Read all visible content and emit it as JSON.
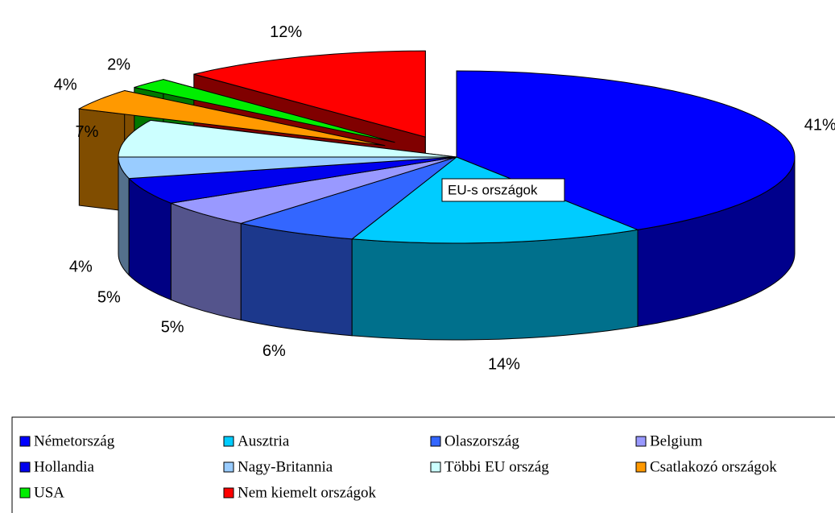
{
  "chart_data": {
    "type": "pie",
    "three_d": true,
    "categories": [
      "Németország",
      "Ausztria",
      "Olaszország",
      "Belgium",
      "Hollandia",
      "Nagy-Britannia",
      "Többi EU ország",
      "Csatlakozó országok",
      "USA",
      "Nem kiemelt országok"
    ],
    "values": [
      41,
      14,
      6,
      5,
      5,
      4,
      7,
      4,
      2,
      12
    ],
    "value_labels": [
      "41%",
      "14%",
      "6%",
      "5%",
      "5%",
      "4%",
      "7%",
      "4%",
      "2%",
      "12%"
    ],
    "colors": [
      "#0000ff",
      "#00ccff",
      "#3366ff",
      "#9999ff",
      "#0000ee",
      "#99ccff",
      "#ccffff",
      "#ff9900",
      "#00ee00",
      "#ff0000"
    ],
    "exploded": [
      false,
      false,
      false,
      false,
      false,
      false,
      false,
      true,
      true,
      true
    ],
    "annotation": "EU-s országok",
    "legend": "bottom"
  }
}
